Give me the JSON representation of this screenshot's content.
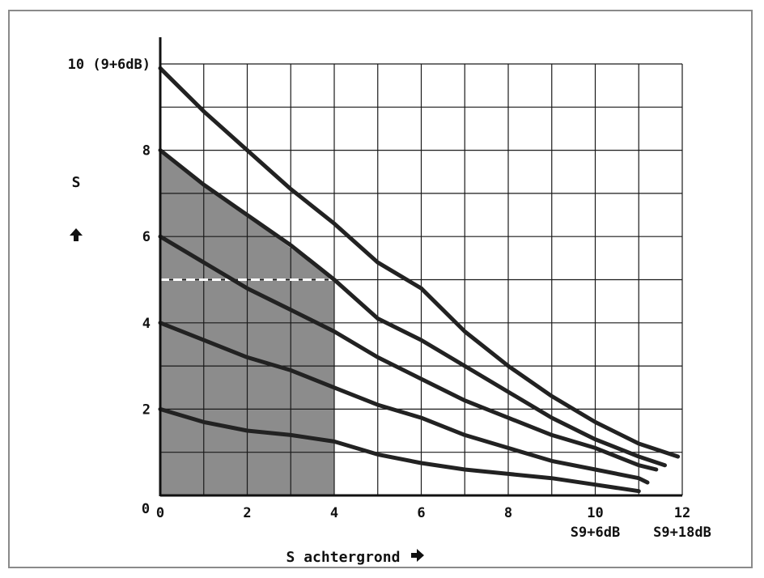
{
  "chart_data": {
    "type": "line",
    "title": "",
    "xlabel": "S achtergrond",
    "ylabel": "S",
    "xlim": [
      0,
      12
    ],
    "ylim": [
      0,
      10
    ],
    "grid": true,
    "x_ticks": [
      {
        "value": 0,
        "label": "0"
      },
      {
        "value": 2,
        "label": "2"
      },
      {
        "value": 4,
        "label": "4"
      },
      {
        "value": 6,
        "label": "6"
      },
      {
        "value": 8,
        "label": "8"
      },
      {
        "value": 10,
        "label": "10"
      },
      {
        "value": 12,
        "label": "12"
      }
    ],
    "x_sublabels": [
      {
        "value": 10,
        "label": "S9+6dB"
      },
      {
        "value": 12,
        "label": "S9+18dB"
      }
    ],
    "y_ticks": [
      {
        "value": 0,
        "label": ""
      },
      {
        "value": 2,
        "label": "2"
      },
      {
        "value": 4,
        "label": "4"
      },
      {
        "value": 6,
        "label": "6"
      },
      {
        "value": 8,
        "label": "8"
      },
      {
        "value": 10,
        "label": "10 (9+6dB)"
      }
    ],
    "shaded_region": {
      "x": [
        0,
        4
      ],
      "y_top_at_x0": 8,
      "y_top_at_x1": 7.2,
      "y_top_at_x4": 5,
      "color": "#8c8c8c"
    },
    "reference_line": {
      "y": 5,
      "x": [
        0,
        4
      ],
      "color": "#ffffff",
      "style": "dashed"
    },
    "series": [
      {
        "x": [
          0,
          1,
          2,
          3,
          4,
          5,
          6,
          7,
          8,
          9,
          10,
          11,
          11.9
        ],
        "values": [
          9.9,
          8.9,
          8.0,
          7.1,
          6.3,
          5.4,
          4.8,
          3.8,
          3.0,
          2.3,
          1.7,
          1.2,
          0.9
        ]
      },
      {
        "x": [
          0,
          1,
          2,
          3,
          4,
          5,
          6,
          7,
          8,
          9,
          10,
          11,
          11.6
        ],
        "values": [
          8.0,
          7.2,
          6.5,
          5.8,
          5.0,
          4.1,
          3.6,
          3.0,
          2.4,
          1.8,
          1.3,
          0.9,
          0.7
        ]
      },
      {
        "x": [
          0,
          1,
          2,
          3,
          4,
          5,
          6,
          7,
          8,
          9,
          10,
          11,
          11.4
        ],
        "values": [
          6.0,
          5.4,
          4.8,
          4.3,
          3.8,
          3.2,
          2.7,
          2.2,
          1.8,
          1.4,
          1.1,
          0.7,
          0.6
        ]
      },
      {
        "x": [
          0,
          1,
          2,
          3,
          4,
          5,
          6,
          7,
          8,
          9,
          10,
          11,
          11.2
        ],
        "values": [
          4.0,
          3.6,
          3.2,
          2.9,
          2.5,
          2.1,
          1.8,
          1.4,
          1.1,
          0.8,
          0.6,
          0.4,
          0.3
        ]
      },
      {
        "x": [
          0,
          1,
          2,
          3,
          4,
          5,
          6,
          7,
          8,
          9,
          10,
          11
        ],
        "values": [
          2.0,
          1.7,
          1.5,
          1.4,
          1.25,
          0.95,
          0.75,
          0.6,
          0.5,
          0.4,
          0.25,
          0.1
        ]
      }
    ],
    "line_color": "#222222",
    "grid_color": "#1a1a1a"
  }
}
